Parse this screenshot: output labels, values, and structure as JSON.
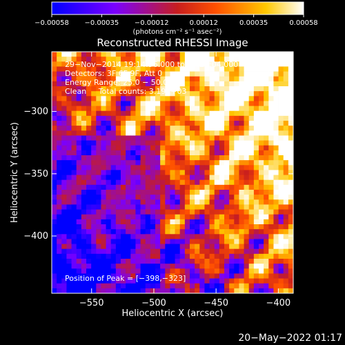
{
  "chart_data": {
    "type": "heatmap",
    "title": "Reconstructed RHESSI Image",
    "xlabel": "Heliocentric X (arcsec)",
    "ylabel": "Heliocentric Y (arcsec)",
    "xlim": [
      -582,
      -388
    ],
    "ylim": [
      -446,
      -252
    ],
    "x_ticks": [
      -550,
      -500,
      -450,
      -400
    ],
    "x_tick_labels": [
      "−550",
      "−500",
      "−450",
      "−400"
    ],
    "y_ticks": [
      -300,
      -350,
      -400
    ],
    "y_tick_labels": [
      "−300",
      "−350",
      "−400"
    ],
    "colorbar": {
      "range": [
        -0.00058,
        0.00058
      ],
      "ticks": [
        -0.00058,
        -0.00035,
        -0.00012,
        0.00012,
        0.00035,
        0.00058
      ],
      "tick_labels": [
        "−0.00058",
        "−0.00035",
        "−0.00012",
        "0.00012",
        "0.00035",
        "0.00058"
      ],
      "units_label": "(photons cm⁻² s⁻¹ asec⁻²)",
      "colormap": [
        "#0000ff",
        "#7a00ff",
        "#c81e1e",
        "#ff5000",
        "#ffc800",
        "#ffffff"
      ]
    },
    "annotations": [
      "29−Nov−2014 19:14:56.000 to 19:20:04.000",
      "Detectors: 3F 6F 9F, Att 0",
      "Energy Range: 25.0 − 50.0 keV",
      "Clean     Total counts: 3.19E+03",
      "Position of Peak = [−398,−323]"
    ],
    "peak_position": [
      -398,
      -323
    ],
    "pattern": {
      "grid": 49,
      "description": "ringing interference pattern: negative flux (blue/purple) to the lower-left, positive flux (red/yellow/white) to the upper-right"
    }
  },
  "footer": {
    "timestamp": "20−May−2022 01:17"
  }
}
